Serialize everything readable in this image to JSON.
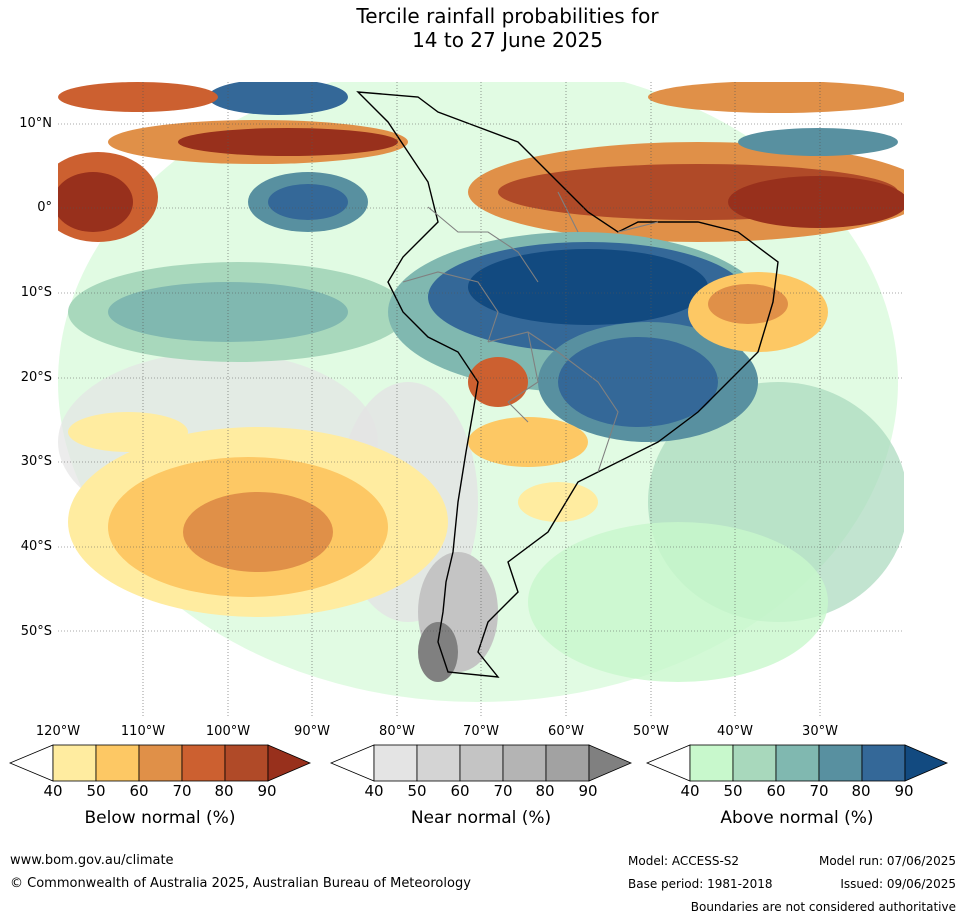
{
  "title": {
    "line1": "Tercile rainfall probabilities for",
    "line2": "14 to 27 June 2025"
  },
  "map": {
    "region": "South America",
    "lat_labels": [
      "10°N",
      "0°",
      "10°S",
      "20°S",
      "30°S",
      "40°S",
      "50°S"
    ],
    "lon_labels": [
      "120°W",
      "110°W",
      "100°W",
      "90°W",
      "80°W",
      "70°W",
      "60°W",
      "50°W",
      "40°W",
      "30°W"
    ],
    "gridlines": true
  },
  "legend": {
    "below": {
      "title": "Below normal (%)",
      "ticks": [
        "40",
        "50",
        "60",
        "70",
        "80",
        "90"
      ],
      "colors": [
        "#ffeca0",
        "#fdc864",
        "#e09048",
        "#cc6030",
        "#b04a28",
        "#98301c"
      ]
    },
    "near": {
      "title": "Near normal (%)",
      "ticks": [
        "40",
        "50",
        "60",
        "70",
        "80",
        "90"
      ],
      "colors": [
        "#e4e4e4",
        "#d4d4d4",
        "#c4c4c4",
        "#b4b4b4",
        "#a2a2a2",
        "#808080"
      ]
    },
    "above": {
      "title": "Above normal (%)",
      "ticks": [
        "40",
        "50",
        "60",
        "70",
        "80",
        "90"
      ],
      "colors": [
        "#c8f8cc",
        "#a8d8bc",
        "#80b8b0",
        "#5890a0",
        "#346898",
        "#124a80"
      ]
    }
  },
  "footer": {
    "url": "www.bom.gov.au/climate",
    "copyright": "© Commonwealth of Australia 2025, Australian Bureau of Meteorology",
    "model": "Model: ACCESS-S2",
    "model_run": "Model run: 07/06/2025",
    "base_period": "Base period: 1981-2018",
    "issued": "Issued: 09/06/2025",
    "disclaimer": "Boundaries are not considered authoritative"
  }
}
